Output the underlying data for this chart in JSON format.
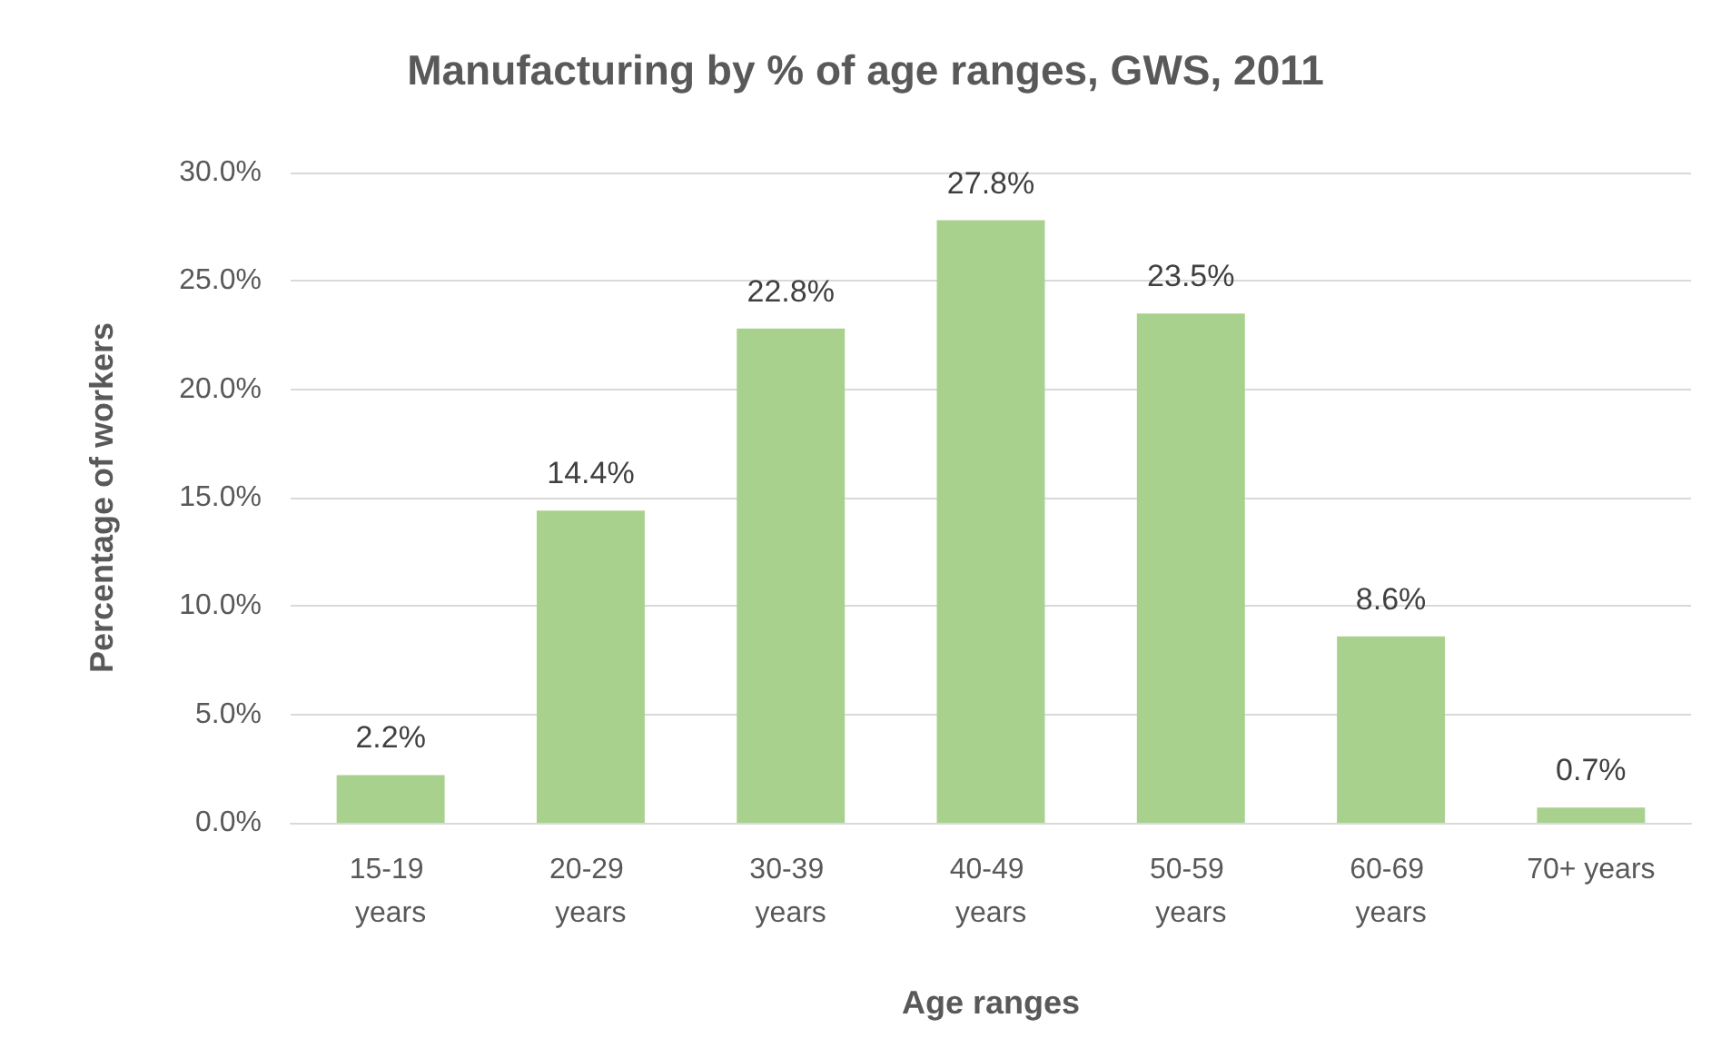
{
  "chart_data": {
    "type": "bar",
    "title": "Manufacturing by % of age ranges, GWS, 2011",
    "xlabel": "Age ranges",
    "ylabel": "Percentage of workers",
    "categories": [
      "15-19 years",
      "20-29 years",
      "30-39 years",
      "40-49 years",
      "50-59 years",
      "60-69 years",
      "70+ years"
    ],
    "values": [
      2.2,
      14.4,
      22.8,
      27.8,
      23.5,
      8.6,
      0.7
    ],
    "value_labels": [
      "2.2%",
      "14.4%",
      "22.8%",
      "27.8%",
      "23.5%",
      "8.6%",
      "0.7%"
    ],
    "color": "#a9d18e",
    "grid": "y",
    "ylim": [
      0,
      30
    ],
    "yticks": [
      {
        "value": 0,
        "label": "0.0%"
      },
      {
        "value": 5,
        "label": "5.0%"
      },
      {
        "value": 10,
        "label": "10.0%"
      },
      {
        "value": 15,
        "label": "15.0%"
      },
      {
        "value": 20,
        "label": "20.0%"
      },
      {
        "value": 25,
        "label": "25.0%"
      },
      {
        "value": 30,
        "label": "30.0%"
      }
    ]
  }
}
